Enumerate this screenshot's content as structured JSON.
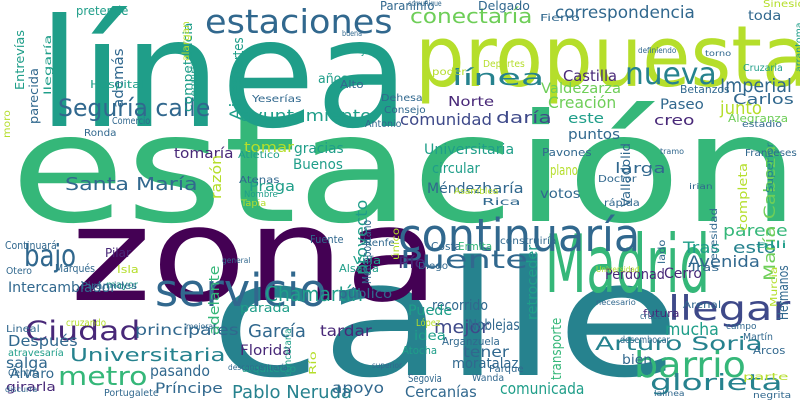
{
  "palette": [
    "#440154",
    "#482878",
    "#3e4989",
    "#31688e",
    "#26828e",
    "#1f9e89",
    "#35b779",
    "#6ece58",
    "#b5de2b",
    "#fde725"
  ],
  "words": [
    {
      "text": "estación",
      "color": 6
    },
    {
      "text": "línea",
      "color": 5
    },
    {
      "text": "calle",
      "color": 4
    },
    {
      "text": "zona",
      "color": 0
    },
    {
      "text": "propuesta",
      "color": 8
    },
    {
      "text": "Madrid",
      "color": 6
    },
    {
      "text": "continuaría",
      "color": 3
    },
    {
      "text": "estaciones",
      "color": 3
    },
    {
      "text": "servicio",
      "color": 3
    },
    {
      "text": "barrio",
      "color": 6
    },
    {
      "text": "llegar",
      "color": 2
    },
    {
      "text": "nueva",
      "color": 4
    },
    {
      "text": "Seguría calle",
      "color": 3
    },
    {
      "text": "Ciudad",
      "color": 1
    },
    {
      "text": "metro",
      "color": 6
    },
    {
      "text": "bajo",
      "color": 3
    },
    {
      "text": "Puente",
      "color": 3
    },
    {
      "text": "Universitaria",
      "color": 4
    },
    {
      "text": "Arturo Soria",
      "color": 4
    },
    {
      "text": "línea",
      "color": 4
    },
    {
      "text": "Chamartín",
      "color": 5
    },
    {
      "text": "glorieta",
      "color": 4
    },
    {
      "text": "conectaría",
      "color": 7
    },
    {
      "text": "correspondencia",
      "color": 3
    },
    {
      "text": "Santa María",
      "color": 3
    },
    {
      "text": "García",
      "color": 3
    },
    {
      "text": "Pablo Neruda",
      "color": 4
    },
    {
      "text": "Imperial",
      "color": 3
    },
    {
      "text": "Castilla",
      "color": 1
    },
    {
      "text": "Creación",
      "color": 7
    },
    {
      "text": "Valdezarza",
      "color": 7
    },
    {
      "text": "Carlos",
      "color": 3
    },
    {
      "text": "junto",
      "color": 8
    },
    {
      "text": "comunidad",
      "color": 2
    },
    {
      "text": "daría",
      "color": 2
    },
    {
      "text": "ayuntamiento",
      "color": 5
    },
    {
      "text": "Avenida",
      "color": 3
    },
    {
      "text": "Tras",
      "color": 5
    },
    {
      "text": "esto",
      "color": 4
    },
    {
      "text": "parece",
      "color": 6
    },
    {
      "text": "mejor",
      "color": 2
    },
    {
      "text": "mucha",
      "color": 5
    },
    {
      "text": "apoyo",
      "color": 3
    },
    {
      "text": "tardar",
      "color": 1
    },
    {
      "text": "Florida",
      "color": 1
    },
    {
      "text": "pasando",
      "color": 3
    },
    {
      "text": "Príncipe",
      "color": 3
    },
    {
      "text": "comunicada",
      "color": 5
    },
    {
      "text": "Cercanías",
      "color": 3
    },
    {
      "text": "principales",
      "color": 3
    },
    {
      "text": "Después",
      "color": 3
    },
    {
      "text": "Intercambiador",
      "color": 3
    },
    {
      "text": "recorrido",
      "color": 3
    },
    {
      "text": "Noblejas",
      "color": 3
    },
    {
      "text": "moratalaz",
      "color": 3
    },
    {
      "text": "tener",
      "color": 3
    },
    {
      "text": "bien",
      "color": 3
    },
    {
      "text": "Cerro",
      "color": 1
    },
    {
      "text": "Perdonad",
      "color": 1
    },
    {
      "text": "Méndez",
      "color": 3
    },
    {
      "text": "haría",
      "color": 3
    },
    {
      "text": "votos",
      "color": 3
    },
    {
      "text": "tomaría",
      "color": 1
    },
    {
      "text": "tomar",
      "color": 8
    },
    {
      "text": "gracias",
      "color": 5
    },
    {
      "text": "Buenos",
      "color": 5
    },
    {
      "text": "Praga",
      "color": 5
    },
    {
      "text": "circular",
      "color": 5
    },
    {
      "text": "Universitaria",
      "color": 5
    },
    {
      "text": "puntos",
      "color": 3
    },
    {
      "text": "creo",
      "color": 1
    },
    {
      "text": "este",
      "color": 5
    },
    {
      "text": "Paseo",
      "color": 3
    },
    {
      "text": "larga",
      "color": 3
    },
    {
      "text": "plano",
      "color": 8
    },
    {
      "text": "Norte",
      "color": 1
    },
    {
      "text": "años",
      "color": 5
    },
    {
      "text": "toda",
      "color": 3
    },
    {
      "text": "Aires",
      "color": 5
    },
    {
      "text": "además",
      "color": 3
    },
    {
      "text": "competencia",
      "color": 5
    },
    {
      "text": "llegaría",
      "color": 5
    },
    {
      "text": "Entrevías",
      "color": 5
    },
    {
      "text": "parecida",
      "color": 3
    },
    {
      "text": "Pío",
      "color": 1
    },
    {
      "text": "Puede",
      "color": 5
    },
    {
      "text": "idea",
      "color": 5
    },
    {
      "text": "María Cabeza",
      "color": 7
    },
    {
      "text": "completa",
      "color": 8
    },
    {
      "text": "razón",
      "color": 8
    },
    {
      "text": "salga",
      "color": 3
    },
    {
      "text": "girarla",
      "color": 1
    },
    {
      "text": "Álvaro",
      "color": 3
    },
    {
      "text": "retroceder",
      "color": 5
    },
    {
      "text": "transporte",
      "color": 6
    },
    {
      "text": "público",
      "color": 3
    },
    {
      "text": "parada",
      "color": 5
    },
    {
      "text": "adelante",
      "color": 6
    },
    {
      "text": "proyecto",
      "color": 5
    },
    {
      "text": "pretende",
      "color": 5
    },
    {
      "text": "fuertes",
      "color": 5
    },
    {
      "text": "Hospital",
      "color": 5
    },
    {
      "text": "Delgado",
      "color": 3
    },
    {
      "text": "Paraninfo",
      "color": 3
    },
    {
      "text": "Fierro",
      "color": 3
    },
    {
      "text": "Sinesio",
      "color": 8
    },
    {
      "text": "Deportes",
      "color": 8
    },
    {
      "text": "poder",
      "color": 8
    },
    {
      "text": "Consejo",
      "color": 3
    },
    {
      "text": "Cruzaria",
      "color": 5
    },
    {
      "text": "Betanzos",
      "color": 3
    },
    {
      "text": "Dehesa",
      "color": 3
    },
    {
      "text": "Jalón",
      "color": 5
    },
    {
      "text": "Alto",
      "color": 3
    },
    {
      "text": "Yeserías",
      "color": 3
    },
    {
      "text": "Antonio",
      "color": 3
    },
    {
      "text": "Pavones",
      "color": 3
    },
    {
      "text": "Alegranza",
      "color": 7
    },
    {
      "text": "estadio",
      "color": 3
    },
    {
      "text": "Ronda",
      "color": 3
    },
    {
      "text": "Atlético",
      "color": 5
    },
    {
      "text": "Atenas",
      "color": 3
    },
    {
      "text": "Tapia",
      "color": 8
    },
    {
      "text": "Nombre",
      "color": 5
    },
    {
      "text": "Doctor",
      "color": 3
    },
    {
      "text": "Rica",
      "color": 3
    },
    {
      "text": "Asamblea",
      "color": 8
    },
    {
      "text": "rápida",
      "color": 3
    },
    {
      "text": "Franceses",
      "color": 3
    },
    {
      "text": "Superior",
      "color": 4
    },
    {
      "text": "Valladolid",
      "color": 3
    },
    {
      "text": "necesidad",
      "color": 3
    },
    {
      "text": "Renfe",
      "color": 3
    },
    {
      "text": "construiría",
      "color": 3
    },
    {
      "text": "lado",
      "color": 3
    },
    {
      "text": "alli",
      "color": 5
    },
    {
      "text": "Continuará",
      "color": 3
    },
    {
      "text": "Marqués",
      "color": 3
    },
    {
      "text": "Pilar",
      "color": 1
    },
    {
      "text": "Isla",
      "color": 8
    },
    {
      "text": "mayor",
      "color": 5
    },
    {
      "text": "Pirámides",
      "color": 3
    },
    {
      "text": "Fuente",
      "color": 3
    },
    {
      "text": "Costa",
      "color": 3
    },
    {
      "text": "Ermita",
      "color": 6
    },
    {
      "text": "Villa",
      "color": 5
    },
    {
      "text": "Alsacia",
      "color": 5
    },
    {
      "text": "Diego",
      "color": 3
    },
    {
      "text": "Tras",
      "color": 3
    },
    {
      "text": "Hermanos",
      "color": 3
    },
    {
      "text": "Arenal",
      "color": 3
    },
    {
      "text": "futura",
      "color": 1
    },
    {
      "text": "cruce",
      "color": 3
    },
    {
      "text": "campo",
      "color": 3
    },
    {
      "text": "Martín",
      "color": 3
    },
    {
      "text": "Arcos",
      "color": 3
    },
    {
      "text": "desembocar",
      "color": 3
    },
    {
      "text": "parte",
      "color": 8
    },
    {
      "text": "negrita",
      "color": 3
    },
    {
      "text": "Arganzuela",
      "color": 3
    },
    {
      "text": "Atocha",
      "color": 5
    },
    {
      "text": "Segovia",
      "color": 3
    },
    {
      "text": "Wanda",
      "color": 3
    },
    {
      "text": "Parque",
      "color": 3
    },
    {
      "text": "Portugalete",
      "color": 3
    },
    {
      "text": "Lineal",
      "color": 3
    },
    {
      "text": "Otero",
      "color": 3
    },
    {
      "text": "atravesaría",
      "color": 5
    },
    {
      "text": "cruzando",
      "color": 8
    },
    {
      "text": "arquitecto",
      "color": 5
    },
    {
      "text": "Centro",
      "color": 3
    },
    {
      "text": "Río",
      "color": 8
    },
    {
      "text": "López",
      "color": 8
    },
    {
      "text": "Metropolitano",
      "color": 3
    },
    {
      "text": "único",
      "color": 8
    },
    {
      "text": "concetaría",
      "color": 5
    },
    {
      "text": "Comercio",
      "color": 3
    },
    {
      "text": "seguiría",
      "color": 5
    },
    {
      "text": "alargan",
      "color": 8
    },
    {
      "text": "moro",
      "color": 8
    },
    {
      "text": "Murcia",
      "color": 8
    },
    {
      "text": "arrantoma",
      "color": 5
    },
    {
      "text": "comunique",
      "color": 3
    },
    {
      "text": "buena",
      "color": 3
    },
    {
      "text": "definiendo",
      "color": 3
    },
    {
      "text": "torno",
      "color": 3
    },
    {
      "text": "tramo",
      "color": 3
    },
    {
      "text": "irian",
      "color": 3
    },
    {
      "text": "discurra",
      "color": 3
    },
    {
      "text": "general",
      "color": 3
    },
    {
      "text": "superior",
      "color": 3
    },
    {
      "text": "Universidad",
      "color": 8
    },
    {
      "text": "necesario",
      "color": 3
    },
    {
      "text": "mejorar",
      "color": 3
    },
    {
      "text": "desconcentraría",
      "color": 3
    },
    {
      "text": "lalinea",
      "color": 3
    }
  ]
}
